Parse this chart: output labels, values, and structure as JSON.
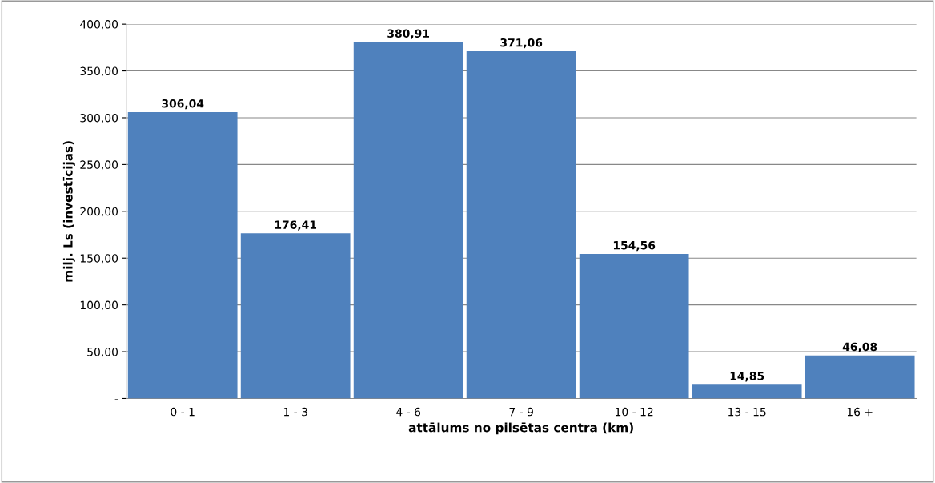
{
  "chart_data": {
    "type": "bar",
    "xlabel": "attālums no pilsētas centra (km)",
    "ylabel": "milj. Ls (investīcijas)",
    "categories": [
      "0 - 1",
      "1 - 3",
      "4 - 6",
      "7 - 9",
      "10 - 12",
      "13 - 15",
      "16 +"
    ],
    "values": [
      306.04,
      176.41,
      380.91,
      371.06,
      154.56,
      14.85,
      46.08
    ],
    "value_labels": [
      "306,04",
      "176,41",
      "380,91",
      "371,06",
      "154,56",
      "14,85",
      "46,08"
    ],
    "color": "#4f81bd",
    "ylim": [
      0,
      400
    ],
    "yticks": [
      {
        "value": 0,
        "label": "-"
      },
      {
        "value": 50,
        "label": "50,00"
      },
      {
        "value": 100,
        "label": "100,00"
      },
      {
        "value": 150,
        "label": "150,00"
      },
      {
        "value": 200,
        "label": "200,00"
      },
      {
        "value": 250,
        "label": "250,00"
      },
      {
        "value": 300,
        "label": "300,00"
      },
      {
        "value": 350,
        "label": "350,00"
      },
      {
        "value": 400,
        "label": "400,00"
      }
    ],
    "grid": "y",
    "legend": false
  }
}
